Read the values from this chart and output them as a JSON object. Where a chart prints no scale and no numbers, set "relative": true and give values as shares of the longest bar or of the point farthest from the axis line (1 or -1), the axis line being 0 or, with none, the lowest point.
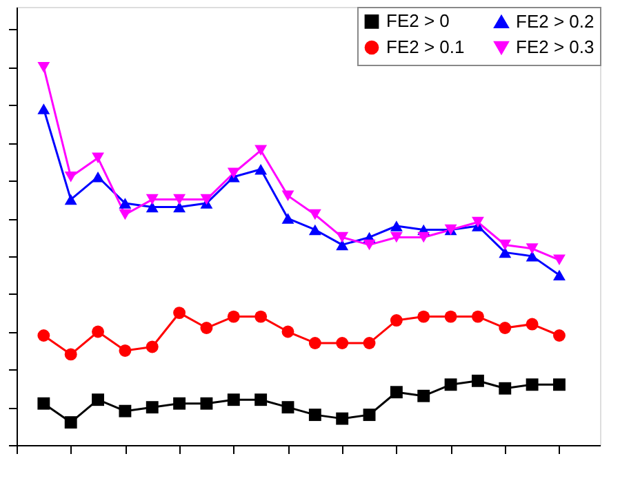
{
  "chart_data": {
    "type": "line",
    "relative": true,
    "categories": [
      null,
      null,
      null,
      null,
      null,
      null,
      null,
      null,
      null,
      null,
      null,
      null,
      null,
      null,
      null,
      null,
      null,
      null,
      null,
      null
    ],
    "legend": "top right",
    "grid": false,
    "series": [
      {
        "name": "FE2 > 0",
        "color": "#000000",
        "marker": "square",
        "values": [
          0.11,
          0.06,
          0.12,
          0.09,
          0.1,
          0.11,
          0.11,
          0.12,
          0.12,
          0.1,
          0.08,
          0.07,
          0.08,
          0.14,
          0.13,
          0.16,
          0.17,
          0.15,
          0.16,
          0.16
        ]
      },
      {
        "name": "FE2 > 0.1",
        "color": "#ff0000",
        "marker": "circle",
        "values": [
          0.29,
          0.24,
          0.3,
          0.25,
          0.26,
          0.35,
          0.31,
          0.34,
          0.34,
          0.3,
          0.27,
          0.27,
          0.27,
          0.33,
          0.34,
          0.34,
          0.34,
          0.31,
          0.32,
          0.29
        ]
      },
      {
        "name": "FE2 > 0.2",
        "color": "#0000ff",
        "marker": "triangle",
        "values": [
          0.89,
          0.65,
          0.71,
          0.64,
          0.63,
          0.63,
          0.64,
          0.71,
          0.73,
          0.6,
          0.57,
          0.53,
          0.55,
          0.58,
          0.57,
          0.57,
          0.58,
          0.51,
          0.5,
          0.45
        ]
      },
      {
        "name": "FE2 > 0.3",
        "color": "#ff00ff",
        "marker": "triangle-down",
        "values": [
          1.0,
          0.71,
          0.76,
          0.61,
          0.65,
          0.65,
          0.65,
          0.72,
          0.78,
          0.66,
          0.61,
          0.55,
          0.53,
          0.55,
          0.55,
          0.57,
          0.59,
          0.53,
          0.52,
          0.49
        ]
      }
    ]
  }
}
